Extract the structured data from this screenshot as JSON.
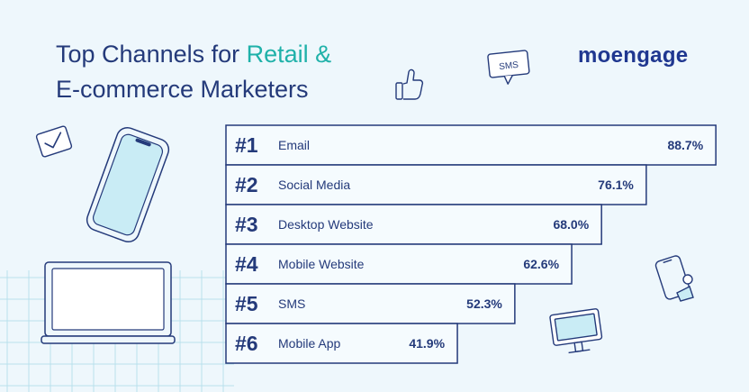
{
  "title": {
    "line1_prefix": "Top Channels for ",
    "line1_accent": "Retail &",
    "line2": "E-commerce Marketers"
  },
  "brand": {
    "logo_text": "moengage"
  },
  "icons": {
    "sms_bubble": {
      "name": "sms-bubble-icon",
      "label": "SMS"
    },
    "thumbs_up": {
      "name": "thumbs-up-icon"
    },
    "envelope_check": {
      "name": "envelope-check-icon"
    },
    "smartphone": {
      "name": "smartphone-icon"
    },
    "laptop": {
      "name": "laptop-icon"
    },
    "phone_notification": {
      "name": "phone-notification-icon"
    },
    "monitor": {
      "name": "monitor-icon"
    }
  },
  "colors": {
    "background": "#eef7fc",
    "navy": "#243a7a",
    "teal": "#1fb1a9",
    "bar_fill": "#f5fbfe",
    "grid": "#b9e1ec"
  },
  "chart_data": {
    "type": "bar",
    "orientation": "horizontal",
    "categories": [
      "Email",
      "Social Media",
      "Desktop Website",
      "Mobile Website",
      "SMS",
      "Mobile App"
    ],
    "ranks": [
      "#1",
      "#2",
      "#3",
      "#4",
      "#5",
      "#6"
    ],
    "values": [
      88.7,
      76.1,
      68.0,
      62.6,
      52.3,
      41.9
    ],
    "value_labels": [
      "88.7%",
      "76.1%",
      "68.0%",
      "62.6%",
      "52.3%",
      "41.9%"
    ]
  }
}
